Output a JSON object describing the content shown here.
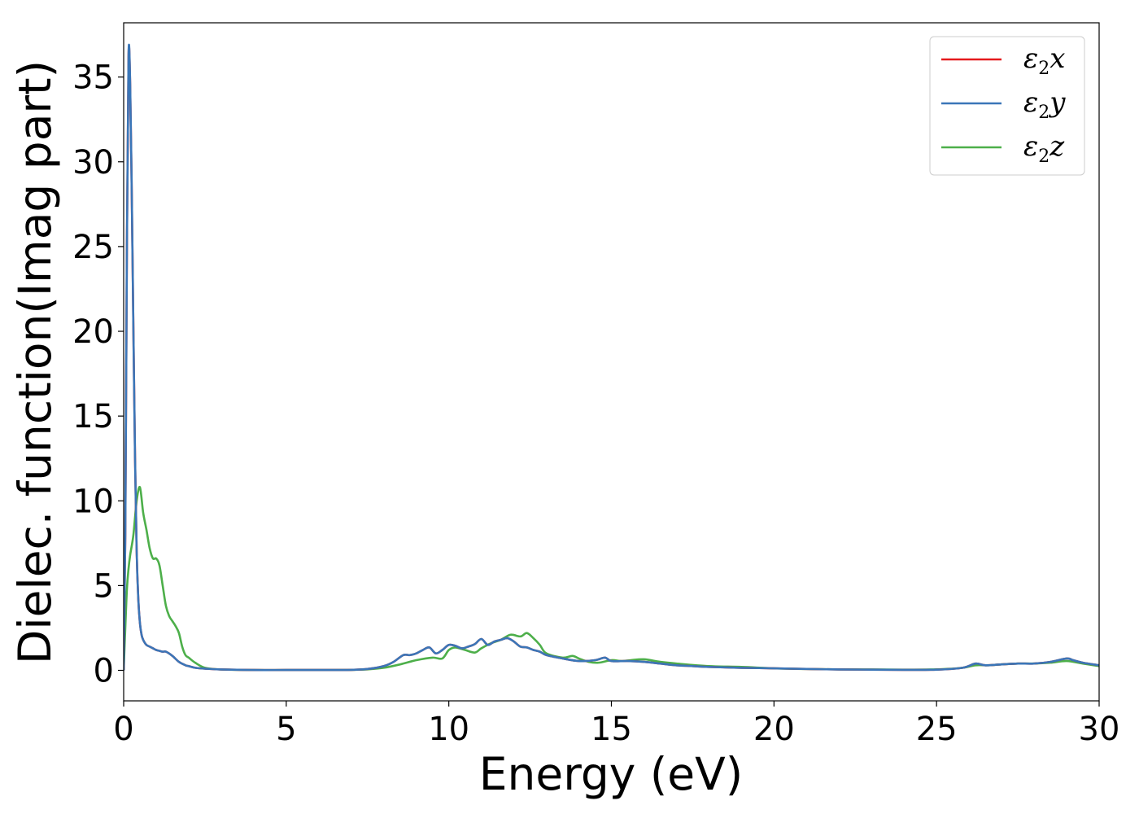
{
  "chart_data": {
    "type": "line",
    "xlabel": "Energy (eV)",
    "ylabel": "Dielec. function(Imag part)",
    "xlim": [
      0,
      30
    ],
    "ylim": [
      -1.8,
      38.2
    ],
    "x_ticks": [
      0,
      5,
      10,
      15,
      20,
      25,
      30
    ],
    "y_ticks": [
      0,
      5,
      10,
      15,
      20,
      25,
      30,
      35
    ],
    "grid": false,
    "legend_position": "top-right",
    "series": [
      {
        "name": "ε2x",
        "legend": {
          "symbol": "ε",
          "sub": "2",
          "var": "x"
        },
        "color": "#e41a1c",
        "x": [
          0,
          0.05,
          0.1,
          0.15,
          0.2,
          0.25,
          0.3,
          0.35,
          0.4,
          0.45,
          0.5,
          0.55,
          0.6,
          0.7,
          0.8,
          0.9,
          1.0,
          1.1,
          1.2,
          1.3,
          1.5,
          1.7,
          1.9,
          2.0,
          2.2,
          2.5,
          3.0,
          4.0,
          5.0,
          6.0,
          7.0,
          7.5,
          8.0,
          8.3,
          8.6,
          8.8,
          9.0,
          9.2,
          9.4,
          9.6,
          9.8,
          10.0,
          10.2,
          10.4,
          10.6,
          10.8,
          11.0,
          11.2,
          11.4,
          11.6,
          11.8,
          12.0,
          12.2,
          12.4,
          12.6,
          12.8,
          13.0,
          13.5,
          14.0,
          14.5,
          14.8,
          15.0,
          15.5,
          16.0,
          16.5,
          17.0,
          17.5,
          18.0,
          19.0,
          20.0,
          21.0,
          22.0,
          23.0,
          24.0,
          25.0,
          25.8,
          26.2,
          26.5,
          27.0,
          27.5,
          28.0,
          28.5,
          29.0,
          29.2,
          29.5,
          30.0
        ],
        "y": [
          0,
          8,
          25,
          36.2,
          34.5,
          28,
          20,
          12.5,
          7,
          4.2,
          2.8,
          2.1,
          1.8,
          1.5,
          1.4,
          1.3,
          1.2,
          1.15,
          1.1,
          1.1,
          0.85,
          0.5,
          0.3,
          0.25,
          0.15,
          0.1,
          0.05,
          0.02,
          0.02,
          0.02,
          0.03,
          0.08,
          0.25,
          0.5,
          0.9,
          0.9,
          1.0,
          1.2,
          1.35,
          1.0,
          1.2,
          1.5,
          1.45,
          1.3,
          1.4,
          1.55,
          1.85,
          1.5,
          1.7,
          1.8,
          1.9,
          1.7,
          1.4,
          1.35,
          1.2,
          1.1,
          0.9,
          0.7,
          0.55,
          0.6,
          0.75,
          0.55,
          0.55,
          0.5,
          0.4,
          0.3,
          0.25,
          0.2,
          0.15,
          0.12,
          0.08,
          0.05,
          0.04,
          0.03,
          0.04,
          0.15,
          0.4,
          0.3,
          0.35,
          0.4,
          0.4,
          0.5,
          0.7,
          0.6,
          0.45,
          0.3
        ]
      },
      {
        "name": "ε2y",
        "legend": {
          "symbol": "ε",
          "sub": "2",
          "var": "y"
        },
        "color": "#3a76b8",
        "x": [
          0,
          0.05,
          0.1,
          0.15,
          0.2,
          0.25,
          0.3,
          0.35,
          0.4,
          0.45,
          0.5,
          0.55,
          0.6,
          0.7,
          0.8,
          0.9,
          1.0,
          1.1,
          1.2,
          1.3,
          1.5,
          1.7,
          1.9,
          2.0,
          2.2,
          2.5,
          3.0,
          4.0,
          5.0,
          6.0,
          7.0,
          7.5,
          8.0,
          8.3,
          8.6,
          8.8,
          9.0,
          9.2,
          9.4,
          9.6,
          9.8,
          10.0,
          10.2,
          10.4,
          10.6,
          10.8,
          11.0,
          11.2,
          11.4,
          11.6,
          11.8,
          12.0,
          12.2,
          12.4,
          12.6,
          12.8,
          13.0,
          13.5,
          14.0,
          14.5,
          14.8,
          15.0,
          15.5,
          16.0,
          16.5,
          17.0,
          17.5,
          18.0,
          19.0,
          20.0,
          21.0,
          22.0,
          23.0,
          24.0,
          25.0,
          25.8,
          26.2,
          26.5,
          27.0,
          27.5,
          28.0,
          28.5,
          29.0,
          29.2,
          29.5,
          30.0
        ],
        "y": [
          0,
          8,
          25,
          36.3,
          34.6,
          28,
          20,
          12.5,
          7,
          4.2,
          2.8,
          2.1,
          1.8,
          1.5,
          1.4,
          1.3,
          1.2,
          1.15,
          1.1,
          1.1,
          0.85,
          0.5,
          0.3,
          0.25,
          0.15,
          0.1,
          0.05,
          0.02,
          0.02,
          0.02,
          0.03,
          0.08,
          0.25,
          0.5,
          0.9,
          0.9,
          1.0,
          1.2,
          1.35,
          1.0,
          1.2,
          1.5,
          1.45,
          1.3,
          1.4,
          1.55,
          1.85,
          1.5,
          1.7,
          1.8,
          1.9,
          1.7,
          1.4,
          1.35,
          1.2,
          1.1,
          0.9,
          0.7,
          0.55,
          0.6,
          0.75,
          0.55,
          0.55,
          0.5,
          0.4,
          0.3,
          0.25,
          0.2,
          0.15,
          0.12,
          0.08,
          0.05,
          0.04,
          0.03,
          0.04,
          0.15,
          0.4,
          0.3,
          0.35,
          0.4,
          0.4,
          0.5,
          0.7,
          0.6,
          0.45,
          0.3
        ]
      },
      {
        "name": "ε2z",
        "legend": {
          "symbol": "ε",
          "sub": "2",
          "var": "z"
        },
        "color": "#4daf4a",
        "x": [
          0,
          0.05,
          0.1,
          0.15,
          0.2,
          0.3,
          0.4,
          0.5,
          0.6,
          0.7,
          0.8,
          0.9,
          1.0,
          1.1,
          1.2,
          1.3,
          1.4,
          1.5,
          1.6,
          1.7,
          1.8,
          1.9,
          2.0,
          2.2,
          2.5,
          3.0,
          4.0,
          5.0,
          6.0,
          7.0,
          7.5,
          8.0,
          8.5,
          9.0,
          9.5,
          9.8,
          10.0,
          10.2,
          10.5,
          10.8,
          11.0,
          11.3,
          11.6,
          11.9,
          12.2,
          12.4,
          12.6,
          12.8,
          13.0,
          13.5,
          13.8,
          14.0,
          14.3,
          14.6,
          15.0,
          15.3,
          15.6,
          16.0,
          16.5,
          17.0,
          18.0,
          19.0,
          20.0,
          21.0,
          22.0,
          23.0,
          24.0,
          25.0,
          25.8,
          26.2,
          26.6,
          27.0,
          27.5,
          28.0,
          28.5,
          29.0,
          29.5,
          30.0
        ],
        "y": [
          0,
          2.5,
          4.8,
          6.0,
          6.8,
          8.0,
          10.0,
          10.8,
          9.3,
          8.3,
          7.2,
          6.6,
          6.6,
          6.2,
          5.0,
          3.8,
          3.2,
          2.9,
          2.6,
          2.2,
          1.4,
          0.9,
          0.75,
          0.45,
          0.15,
          0.05,
          0.02,
          0.02,
          0.02,
          0.03,
          0.06,
          0.15,
          0.35,
          0.6,
          0.75,
          0.7,
          1.2,
          1.35,
          1.2,
          1.05,
          1.3,
          1.6,
          1.8,
          2.1,
          2.0,
          2.2,
          1.9,
          1.5,
          1.0,
          0.75,
          0.85,
          0.7,
          0.5,
          0.45,
          0.6,
          0.55,
          0.6,
          0.65,
          0.5,
          0.4,
          0.25,
          0.2,
          0.12,
          0.08,
          0.06,
          0.05,
          0.04,
          0.06,
          0.15,
          0.3,
          0.3,
          0.35,
          0.4,
          0.4,
          0.45,
          0.55,
          0.4,
          0.25
        ]
      }
    ]
  }
}
